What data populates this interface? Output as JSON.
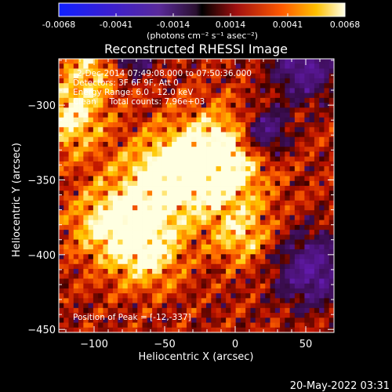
{
  "colorbar": {
    "ticks": [
      "-0.0068",
      "-0.0041",
      "-0.0014",
      "0.0014",
      "0.0041",
      "0.0068"
    ],
    "unit_label": "(photons cm⁻² s⁻¹ asec⁻²)",
    "range": [
      -0.0068,
      0.0068
    ]
  },
  "chart_data": {
    "type": "heatmap",
    "title": "Reconstructed RHESSI Image",
    "xlabel": "Heliocentric X (arcsec)",
    "ylabel": "Heliocentric Y (arcsec)",
    "xlim": [
      -125,
      70
    ],
    "ylim": [
      -452,
      -269
    ],
    "xticks": [
      -100,
      -50,
      0,
      50
    ],
    "yticks": [
      -300,
      -350,
      -400,
      -450
    ],
    "grid": false,
    "colormap": "hot (blue-purple for negative, black-red-yellow-white for positive)",
    "annotations": [
      "2-Dec-2014 07:49:08.000 to 07:50:36.000",
      "Detectors: 3F 6F 9F, Att 0",
      "Energy Range: 6.0 - 12.0 keV",
      "Clean     Total counts: 7.96e+03",
      "Position of Peak = [-12,-337]"
    ],
    "peak_position": [
      -12,
      -337
    ]
  },
  "footer": {
    "date": "20-May-2022 03:31"
  }
}
